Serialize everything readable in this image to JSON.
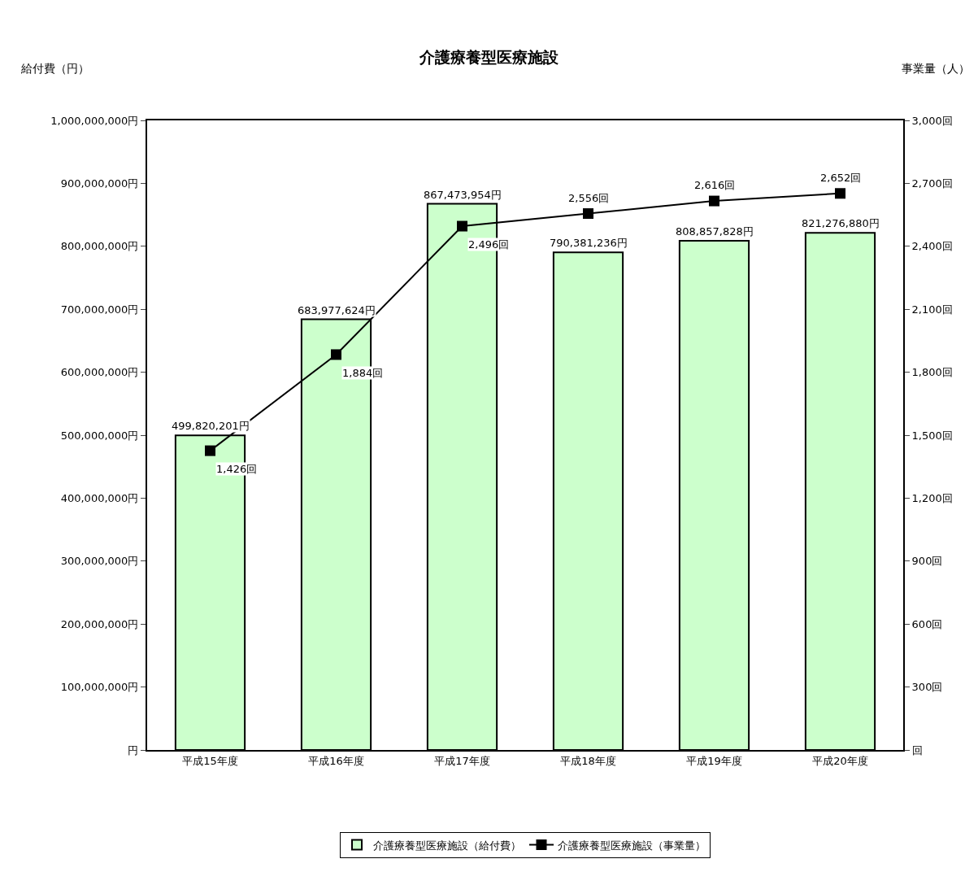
{
  "chart_data": {
    "type": "bar",
    "title": "介護療養型医療施設",
    "ylabel": "給付費（円）",
    "y2label": "事業量（人）",
    "categories": [
      "平成15年度",
      "平成16年度",
      "平成17年度",
      "平成18年度",
      "平成19年度",
      "平成20年度"
    ],
    "series": [
      {
        "name": "介護療養型医療施設（給付費）",
        "color": "#ccffcc",
        "values": [
          499820201,
          683977624,
          867473954,
          790381236,
          808857828,
          821276880
        ],
        "value_labels": [
          "499,820,201円",
          "683,977,624円",
          "867,473,954円",
          "790,381,236円",
          "808,857,828円",
          "821,276,880円"
        ]
      },
      {
        "name": "介護療養型医療施設（事業量）",
        "type": "line",
        "axis": "y2",
        "color": "#000000",
        "marker": "square",
        "values": [
          1426,
          1884,
          2496,
          2556,
          2616,
          2652
        ],
        "value_labels": [
          "1,426回",
          "1,884回",
          "2,496回",
          "2,556回",
          "2,616回",
          "2,652回"
        ]
      }
    ],
    "ylim": [
      0,
      1000000000
    ],
    "yticks": [
      {
        "value": 0,
        "label": "円"
      },
      {
        "value": 100000000,
        "label": "100,000,000円"
      },
      {
        "value": 200000000,
        "label": "200,000,000円"
      },
      {
        "value": 300000000,
        "label": "300,000,000円"
      },
      {
        "value": 400000000,
        "label": "400,000,000円"
      },
      {
        "value": 500000000,
        "label": "500,000,000円"
      },
      {
        "value": 600000000,
        "label": "600,000,000円"
      },
      {
        "value": 700000000,
        "label": "700,000,000円"
      },
      {
        "value": 800000000,
        "label": "800,000,000円"
      },
      {
        "value": 900000000,
        "label": "900,000,000円"
      },
      {
        "value": 1000000000,
        "label": "1,000,000,000円"
      }
    ],
    "y2lim": [
      0,
      3000
    ],
    "y2ticks": [
      {
        "value": 0,
        "label": "回"
      },
      {
        "value": 300,
        "label": "300回"
      },
      {
        "value": 600,
        "label": "600回"
      },
      {
        "value": 900,
        "label": "900回"
      },
      {
        "value": 1200,
        "label": "1,200回"
      },
      {
        "value": 1500,
        "label": "1,500回"
      },
      {
        "value": 1800,
        "label": "1,800回"
      },
      {
        "value": 2100,
        "label": "2,100回"
      },
      {
        "value": 2400,
        "label": "2,400回"
      },
      {
        "value": 2700,
        "label": "2,700回"
      },
      {
        "value": 3000,
        "label": "3,000回"
      }
    ],
    "legend": "bottom",
    "line_style": "solid"
  }
}
